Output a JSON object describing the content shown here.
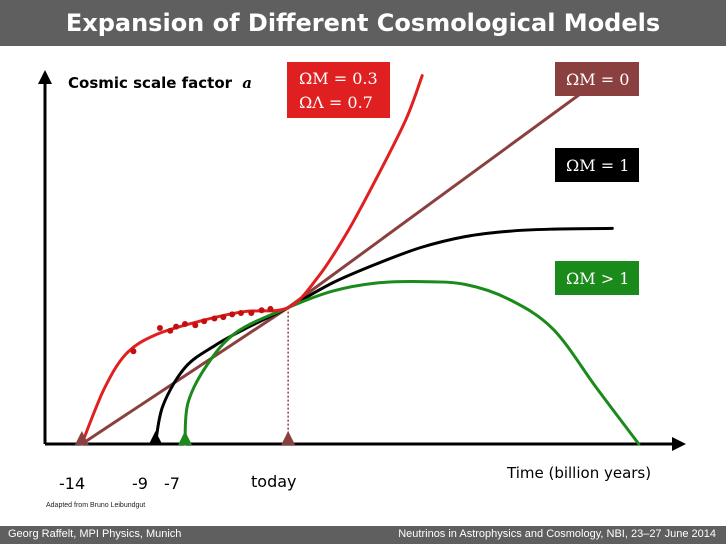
{
  "header": {
    "title": "Expansion of Different Cosmological Models"
  },
  "footer": {
    "left": "Georg Raffelt, MPI Physics, Munich",
    "right": "Neutrinos in Astrophysics and Cosmology, NBI, 23–27 June 2014"
  },
  "credit": "Adapted from Bruno Leibundgut",
  "colors": {
    "omega_lambda": "#e02020",
    "omega_zero": "#8b4040",
    "omega_one": "#000000",
    "omega_gt_one": "#1a8a1a",
    "supernova_points": "#c01010",
    "today_line": "#8b4040"
  },
  "chart_data": {
    "type": "line",
    "title": "",
    "ylabel": "Cosmic scale factor",
    "ylabel_symbol": "a",
    "xlabel": "Time (billion years)",
    "x_tick_labels": [
      "-14",
      "-9",
      "-7",
      "today"
    ],
    "x_ticks": [
      -14,
      -9,
      -7,
      0
    ],
    "xlim": [
      -16.5,
      27
    ],
    "ylim": [
      0,
      2.8
    ],
    "grid": false,
    "series": [
      {
        "key": "omega_lambda",
        "label_lines": [
          "ΩM = 0.3",
          "ΩΛ = 0.7"
        ]
      },
      {
        "key": "omega_zero",
        "label_lines": [
          "ΩM = 0"
        ]
      },
      {
        "key": "omega_one",
        "label_lines": [
          "ΩM = 1"
        ]
      },
      {
        "key": "omega_gt_one",
        "label_lines": [
          "ΩM > 1"
        ]
      }
    ],
    "curves": {
      "omega_lambda": [
        [
          -14,
          0
        ],
        [
          -12.5,
          0.4
        ],
        [
          -11,
          0.66
        ],
        [
          -9,
          0.8
        ],
        [
          -6,
          0.9
        ],
        [
          -3,
          0.97
        ],
        [
          0,
          1
        ],
        [
          2,
          1.22
        ],
        [
          4,
          1.55
        ],
        [
          6,
          1.95
        ],
        [
          8,
          2.38
        ],
        [
          9.1,
          2.7
        ]
      ],
      "omega_zero": [
        [
          -14,
          0
        ],
        [
          0,
          1
        ],
        [
          20,
          2.58
        ]
      ],
      "omega_one": [
        [
          -9,
          0
        ],
        [
          -8.5,
          0.28
        ],
        [
          -7,
          0.56
        ],
        [
          -5,
          0.72
        ],
        [
          -3,
          0.84
        ],
        [
          0,
          1
        ],
        [
          3,
          1.18
        ],
        [
          6,
          1.32
        ],
        [
          9,
          1.44
        ],
        [
          12,
          1.52
        ],
        [
          15,
          1.56
        ],
        [
          18,
          1.575
        ],
        [
          22,
          1.58
        ]
      ],
      "omega_gt_one": [
        [
          -7,
          0
        ],
        [
          -6.8,
          0.3
        ],
        [
          -5.5,
          0.58
        ],
        [
          -3.5,
          0.82
        ],
        [
          0,
          1
        ],
        [
          3,
          1.12
        ],
        [
          6,
          1.18
        ],
        [
          9,
          1.19
        ],
        [
          12,
          1.17
        ],
        [
          15,
          1.06
        ],
        [
          18,
          0.84
        ],
        [
          21,
          0.4
        ],
        [
          23.8,
          0
        ]
      ]
    },
    "supernova_points": [
      [
        -10.5,
        0.68
      ],
      [
        -8.7,
        0.85
      ],
      [
        -8.0,
        0.83
      ],
      [
        -7.6,
        0.86
      ],
      [
        -7.0,
        0.88
      ],
      [
        -6.3,
        0.87
      ],
      [
        -5.7,
        0.9
      ],
      [
        -5.0,
        0.92
      ],
      [
        -4.4,
        0.93
      ],
      [
        -3.8,
        0.95
      ],
      [
        -3.2,
        0.96
      ],
      [
        -2.5,
        0.96
      ],
      [
        -1.8,
        0.98
      ],
      [
        -1.2,
        0.99
      ]
    ],
    "marker_x": [
      -14,
      -9,
      -7,
      0
    ],
    "marker_keys": [
      "omega_zero",
      "omega_one",
      "omega_gt_one",
      "today_line"
    ],
    "today_value": 1
  }
}
